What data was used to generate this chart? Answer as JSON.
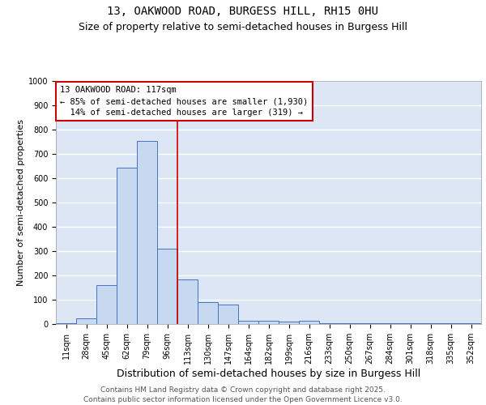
{
  "title1": "13, OAKWOOD ROAD, BURGESS HILL, RH15 0HU",
  "title2": "Size of property relative to semi-detached houses in Burgess Hill",
  "xlabel": "Distribution of semi-detached houses by size in Burgess Hill",
  "ylabel": "Number of semi-detached properties",
  "categories": [
    "11sqm",
    "28sqm",
    "45sqm",
    "62sqm",
    "79sqm",
    "96sqm",
    "113sqm",
    "130sqm",
    "147sqm",
    "164sqm",
    "182sqm",
    "199sqm",
    "216sqm",
    "233sqm",
    "250sqm",
    "267sqm",
    "284sqm",
    "301sqm",
    "318sqm",
    "335sqm",
    "352sqm"
  ],
  "values": [
    5,
    25,
    160,
    645,
    755,
    310,
    185,
    90,
    80,
    15,
    15,
    10,
    15,
    5,
    5,
    2,
    2,
    5,
    2,
    2,
    5
  ],
  "bar_color": "#c6d9f0",
  "bar_edge_color": "#4472c4",
  "vline_x": 5.5,
  "annotation_text": "13 OAKWOOD ROAD: 117sqm\n← 85% of semi-detached houses are smaller (1,930)\n  14% of semi-detached houses are larger (319) →",
  "annotation_box_color": "#ffffff",
  "annotation_box_edge_color": "#cc0000",
  "vline_color": "#cc0000",
  "ylim": [
    0,
    1000
  ],
  "yticks": [
    0,
    100,
    200,
    300,
    400,
    500,
    600,
    700,
    800,
    900,
    1000
  ],
  "background_color": "#dce6f5",
  "grid_color": "#ffffff",
  "footnote": "Contains HM Land Registry data © Crown copyright and database right 2025.\nContains public sector information licensed under the Open Government Licence v3.0.",
  "title1_fontsize": 10,
  "title2_fontsize": 9,
  "xlabel_fontsize": 9,
  "ylabel_fontsize": 8,
  "tick_fontsize": 7,
  "annot_fontsize": 7.5,
  "footnote_fontsize": 6.5
}
